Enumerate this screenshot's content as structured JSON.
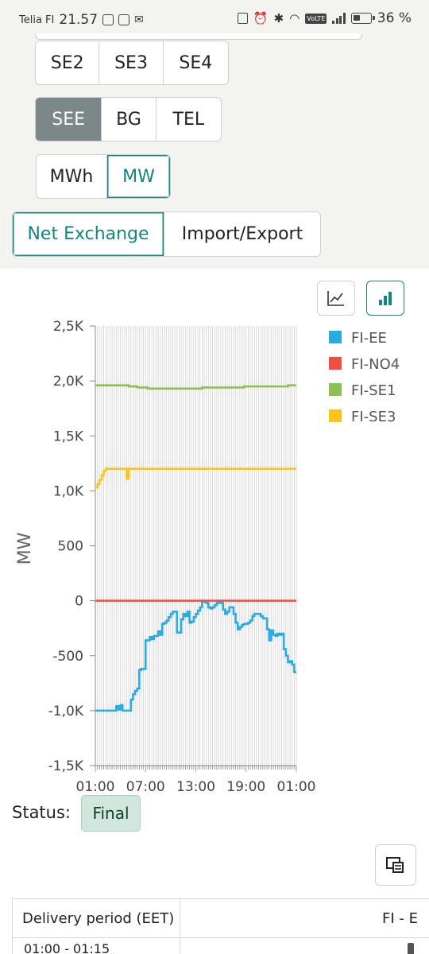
{
  "status_bar": {
    "carrier": "Telia FI",
    "time": "21.57",
    "volte": "VoLTE",
    "battery": "36 %"
  },
  "filters": {
    "area_row_1": [
      "SE2",
      "SE3",
      "SE4"
    ],
    "area_row_2": [
      {
        "label": "SEE",
        "state": "selected"
      },
      {
        "label": "BG",
        "state": "default"
      },
      {
        "label": "TEL",
        "state": "default"
      }
    ],
    "units": [
      {
        "label": "MWh",
        "state": "default"
      },
      {
        "label": "MW",
        "state": "selected"
      }
    ],
    "mode": [
      {
        "label": "Net Exchange",
        "state": "selected"
      },
      {
        "label": "Import/Export",
        "state": "default"
      }
    ]
  },
  "chart_type_buttons": [
    {
      "icon": "line-chart-icon",
      "active": false
    },
    {
      "icon": "bar-chart-icon",
      "active": true
    }
  ],
  "chart_data": {
    "type": "line",
    "ylabel": "MW",
    "ylim": [
      -1500,
      2500
    ],
    "y_ticks": [
      2500,
      2000,
      1500,
      1000,
      500,
      0,
      -500,
      -1000,
      -1500
    ],
    "y_tick_labels": [
      "2,5K",
      "2,0K",
      "1,5K",
      "1,0K",
      "500",
      "0",
      "-500",
      "-1,0K",
      "-1,5K"
    ],
    "x_tick_labels": [
      "01:00",
      "07:00",
      "13:00",
      "19:00",
      "01:00"
    ],
    "x_count": 96,
    "x_label_every": 24,
    "grid": true,
    "legend_position": "right",
    "series": [
      {
        "name": "FI-EE",
        "color": "#29abe2",
        "values": [
          -1000,
          -1000,
          -1000,
          -1000,
          -1000,
          -1000,
          -1000,
          -1000,
          -1000,
          -1000,
          -960,
          -990,
          -950,
          -1000,
          -1000,
          -1000,
          -1000,
          -900,
          -850,
          -820,
          -800,
          -630,
          -620,
          -620,
          -360,
          -360,
          -330,
          -350,
          -320,
          -320,
          -280,
          -310,
          -210,
          -200,
          -180,
          -150,
          -120,
          -100,
          -100,
          -290,
          -290,
          -170,
          -120,
          -140,
          -100,
          -200,
          -190,
          -150,
          -120,
          -90,
          -60,
          0,
          -10,
          -20,
          -60,
          -70,
          -60,
          -40,
          -20,
          0,
          -20,
          -80,
          -120,
          -100,
          -60,
          -60,
          -120,
          -200,
          -260,
          -240,
          -220,
          -210,
          -210,
          -200,
          -180,
          -140,
          -120,
          -120,
          -120,
          -140,
          -160,
          -160,
          -260,
          -360,
          -270,
          -310,
          -320,
          -300,
          -310,
          -300,
          -440,
          -500,
          -560,
          -550,
          -580,
          -650
        ]
      },
      {
        "name": "FI-NO4",
        "color": "#f04e3e",
        "values": [
          0,
          0,
          0,
          0,
          0,
          0,
          0,
          0,
          0,
          0,
          0,
          0,
          0,
          0,
          0,
          0,
          0,
          0,
          0,
          0,
          0,
          0,
          0,
          0,
          0,
          0,
          0,
          0,
          0,
          0,
          0,
          0,
          0,
          0,
          0,
          0,
          0,
          0,
          0,
          0,
          0,
          0,
          0,
          0,
          0,
          0,
          0,
          0,
          0,
          0,
          0,
          0,
          0,
          0,
          0,
          0,
          0,
          0,
          0,
          0,
          0,
          0,
          0,
          0,
          0,
          0,
          0,
          0,
          0,
          0,
          0,
          0,
          0,
          0,
          0,
          0,
          0,
          0,
          0,
          0,
          0,
          0,
          0,
          0,
          0,
          0,
          0,
          0,
          0,
          0,
          0,
          0,
          0,
          0,
          0,
          0
        ]
      },
      {
        "name": "FI-SE1",
        "color": "#8cc152",
        "values": [
          1960,
          1960,
          1960,
          1960,
          1960,
          1960,
          1960,
          1960,
          1960,
          1960,
          1960,
          1960,
          1960,
          1960,
          1960,
          1960,
          1950,
          1950,
          1950,
          1950,
          1940,
          1940,
          1940,
          1940,
          1940,
          1930,
          1930,
          1930,
          1930,
          1930,
          1930,
          1930,
          1930,
          1930,
          1930,
          1930,
          1930,
          1930,
          1930,
          1930,
          1930,
          1930,
          1930,
          1930,
          1930,
          1930,
          1930,
          1930,
          1930,
          1930,
          1930,
          1940,
          1940,
          1940,
          1940,
          1940,
          1940,
          1940,
          1940,
          1940,
          1940,
          1940,
          1940,
          1940,
          1940,
          1940,
          1940,
          1940,
          1940,
          1940,
          1940,
          1950,
          1950,
          1950,
          1950,
          1950,
          1950,
          1950,
          1950,
          1950,
          1950,
          1950,
          1950,
          1950,
          1950,
          1950,
          1950,
          1950,
          1950,
          1950,
          1950,
          1950,
          1960,
          1960,
          1960,
          1960
        ]
      },
      {
        "name": "FI-SE3",
        "color": "#fcc419",
        "values": [
          1030,
          1060,
          1100,
          1140,
          1180,
          1200,
          1200,
          1200,
          1200,
          1200,
          1200,
          1200,
          1200,
          1200,
          1200,
          1110,
          1200,
          1200,
          1200,
          1200,
          1200,
          1200,
          1200,
          1200,
          1200,
          1200,
          1200,
          1200,
          1200,
          1200,
          1200,
          1200,
          1200,
          1200,
          1200,
          1200,
          1200,
          1200,
          1200,
          1200,
          1200,
          1200,
          1200,
          1200,
          1200,
          1200,
          1200,
          1200,
          1200,
          1200,
          1200,
          1200,
          1200,
          1200,
          1200,
          1200,
          1200,
          1200,
          1200,
          1200,
          1200,
          1200,
          1200,
          1200,
          1200,
          1200,
          1200,
          1200,
          1200,
          1200,
          1200,
          1200,
          1200,
          1200,
          1200,
          1200,
          1200,
          1200,
          1200,
          1200,
          1200,
          1200,
          1200,
          1200,
          1200,
          1200,
          1200,
          1200,
          1200,
          1200,
          1200,
          1200,
          1200,
          1200,
          1200,
          1200
        ]
      }
    ]
  },
  "status": {
    "label": "Status:",
    "value": "Final"
  },
  "table": {
    "header": [
      "Delivery period (EET)",
      "FI - E"
    ],
    "rows": [
      [
        "01:00 - 01:15"
      ]
    ]
  }
}
